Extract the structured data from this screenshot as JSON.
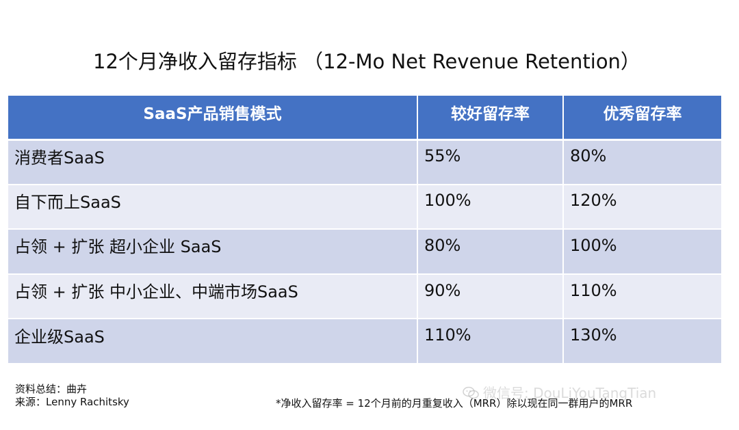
{
  "title": "12个月净收入留存指标  （12-Mo Net Revenue Retention）",
  "table": {
    "headers": [
      "SaaS产品销售模式",
      "较好留存率",
      "优秀留存率"
    ],
    "rows": [
      {
        "model": "消费者SaaS",
        "good": "55%",
        "excellent": "80%"
      },
      {
        "model": "自下而上SaaS",
        "good": "100%",
        "excellent": "120%"
      },
      {
        "model": "占领 + 扩张 超小企业 SaaS",
        "good": "80%",
        "excellent": "100%"
      },
      {
        "model": "占领 + 扩张 中小企业、中端市场SaaS",
        "good": "90%",
        "excellent": "110%"
      },
      {
        "model": "企业级SaaS",
        "good": "110%",
        "excellent": "130%"
      }
    ]
  },
  "source": {
    "line1": "资料总结：曲卉",
    "line2": "来源：Lenny Rachitsky"
  },
  "footnote": "*净收入留存率 = 12个月前的月重复收入（MRR）除以现在同一群用户的MRR",
  "watermark": {
    "text": "微信号: DouLiYouTangTian",
    "icon": "wechat-icon"
  },
  "colors": {
    "header_bg": "#4472c4",
    "row_odd": "#cfd5ea",
    "row_even": "#e9ebf5"
  }
}
